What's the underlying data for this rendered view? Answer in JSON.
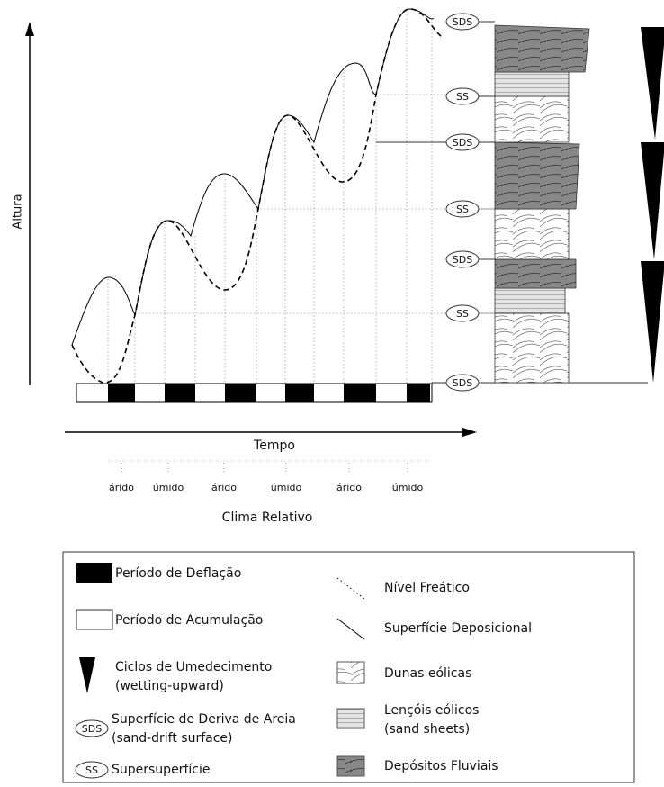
{
  "axes": {
    "y_label": "Altura",
    "x_label": "Tempo",
    "climate_label": "Clima Relativo"
  },
  "climate": [
    "árido",
    "úmido",
    "árido",
    "úmido",
    "árido",
    "úmido"
  ],
  "surfaces": [
    "SDS",
    "SS",
    "SDS",
    "SS",
    "SDS",
    "SS",
    "SDS"
  ],
  "legend": {
    "left": [
      {
        "lines": [
          "Período de Deflação"
        ]
      },
      {
        "lines": [
          "Período de Acumulação"
        ]
      },
      {
        "lines": [
          "Ciclos de Umedecimento",
          "(wetting-upward)"
        ]
      },
      {
        "icon": "SDS",
        "lines": [
          "Superfície de Deriva de Areia",
          "(sand-drift surface)"
        ]
      },
      {
        "icon": "SS",
        "lines": [
          "Supersuperfície"
        ]
      }
    ],
    "right": [
      {
        "lines": [
          "Nível Freático"
        ]
      },
      {
        "lines": [
          "Superfície Deposicional"
        ]
      },
      {
        "lines": [
          "Dunas eólicas"
        ]
      },
      {
        "lines": [
          "Lençóis eólicos",
          "(sand sheets)"
        ]
      },
      {
        "lines": [
          "Depósitos Fluviais"
        ]
      }
    ]
  }
}
